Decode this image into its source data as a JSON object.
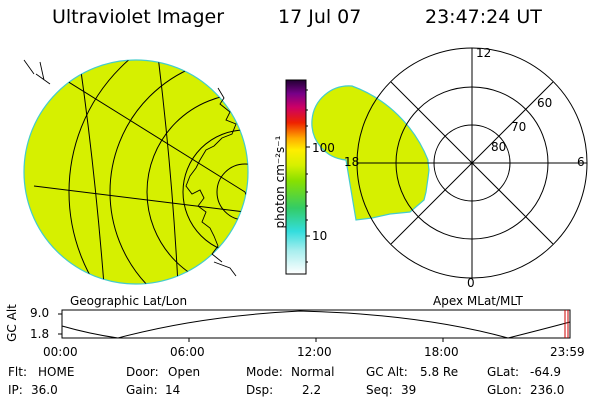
{
  "header": {
    "instrument": "Ultraviolet Imager",
    "date": "17 Jul 07",
    "time": "23:47:24 UT"
  },
  "colorbar": {
    "unit_label": "photon cm⁻²s⁻¹",
    "tick_labels": [
      "100",
      "10"
    ],
    "scale": "log"
  },
  "left_panel": {
    "label": "Geographic Lat/Lon"
  },
  "right_panel": {
    "label": "Apex MLat/MLT",
    "mlt_labels": [
      "12",
      "18",
      "6",
      "0"
    ],
    "mlat_labels": [
      "60",
      "70",
      "80"
    ]
  },
  "altitude_plot": {
    "y_axis_title": "GC Alt",
    "y_ticks": [
      "9.0",
      "1.8"
    ],
    "x_ticks": [
      "00:00",
      "06:00",
      "12:00",
      "18:00",
      "23:59"
    ]
  },
  "status": {
    "row1": [
      {
        "key": "Flt:",
        "value": "HOME"
      },
      {
        "key": "Door:",
        "value": "Open"
      },
      {
        "key": "Mode:",
        "value": "Normal"
      },
      {
        "key": "GC Alt:",
        "value": "5.8 Re"
      },
      {
        "key": "GLat:",
        "value": "-64.9"
      }
    ],
    "row2": [
      {
        "key": "IP:",
        "value": "36.0"
      },
      {
        "key": "Gain:",
        "value": "14"
      },
      {
        "key": "Dsp:",
        "value": "2.2"
      },
      {
        "key": "Seq:",
        "value": "39"
      },
      {
        "key": "GLon:",
        "value": "236.0"
      }
    ]
  },
  "colors": {
    "emission_fill": "#d6f000",
    "emission_edge": "#44cccc",
    "background": "#ffffff"
  }
}
